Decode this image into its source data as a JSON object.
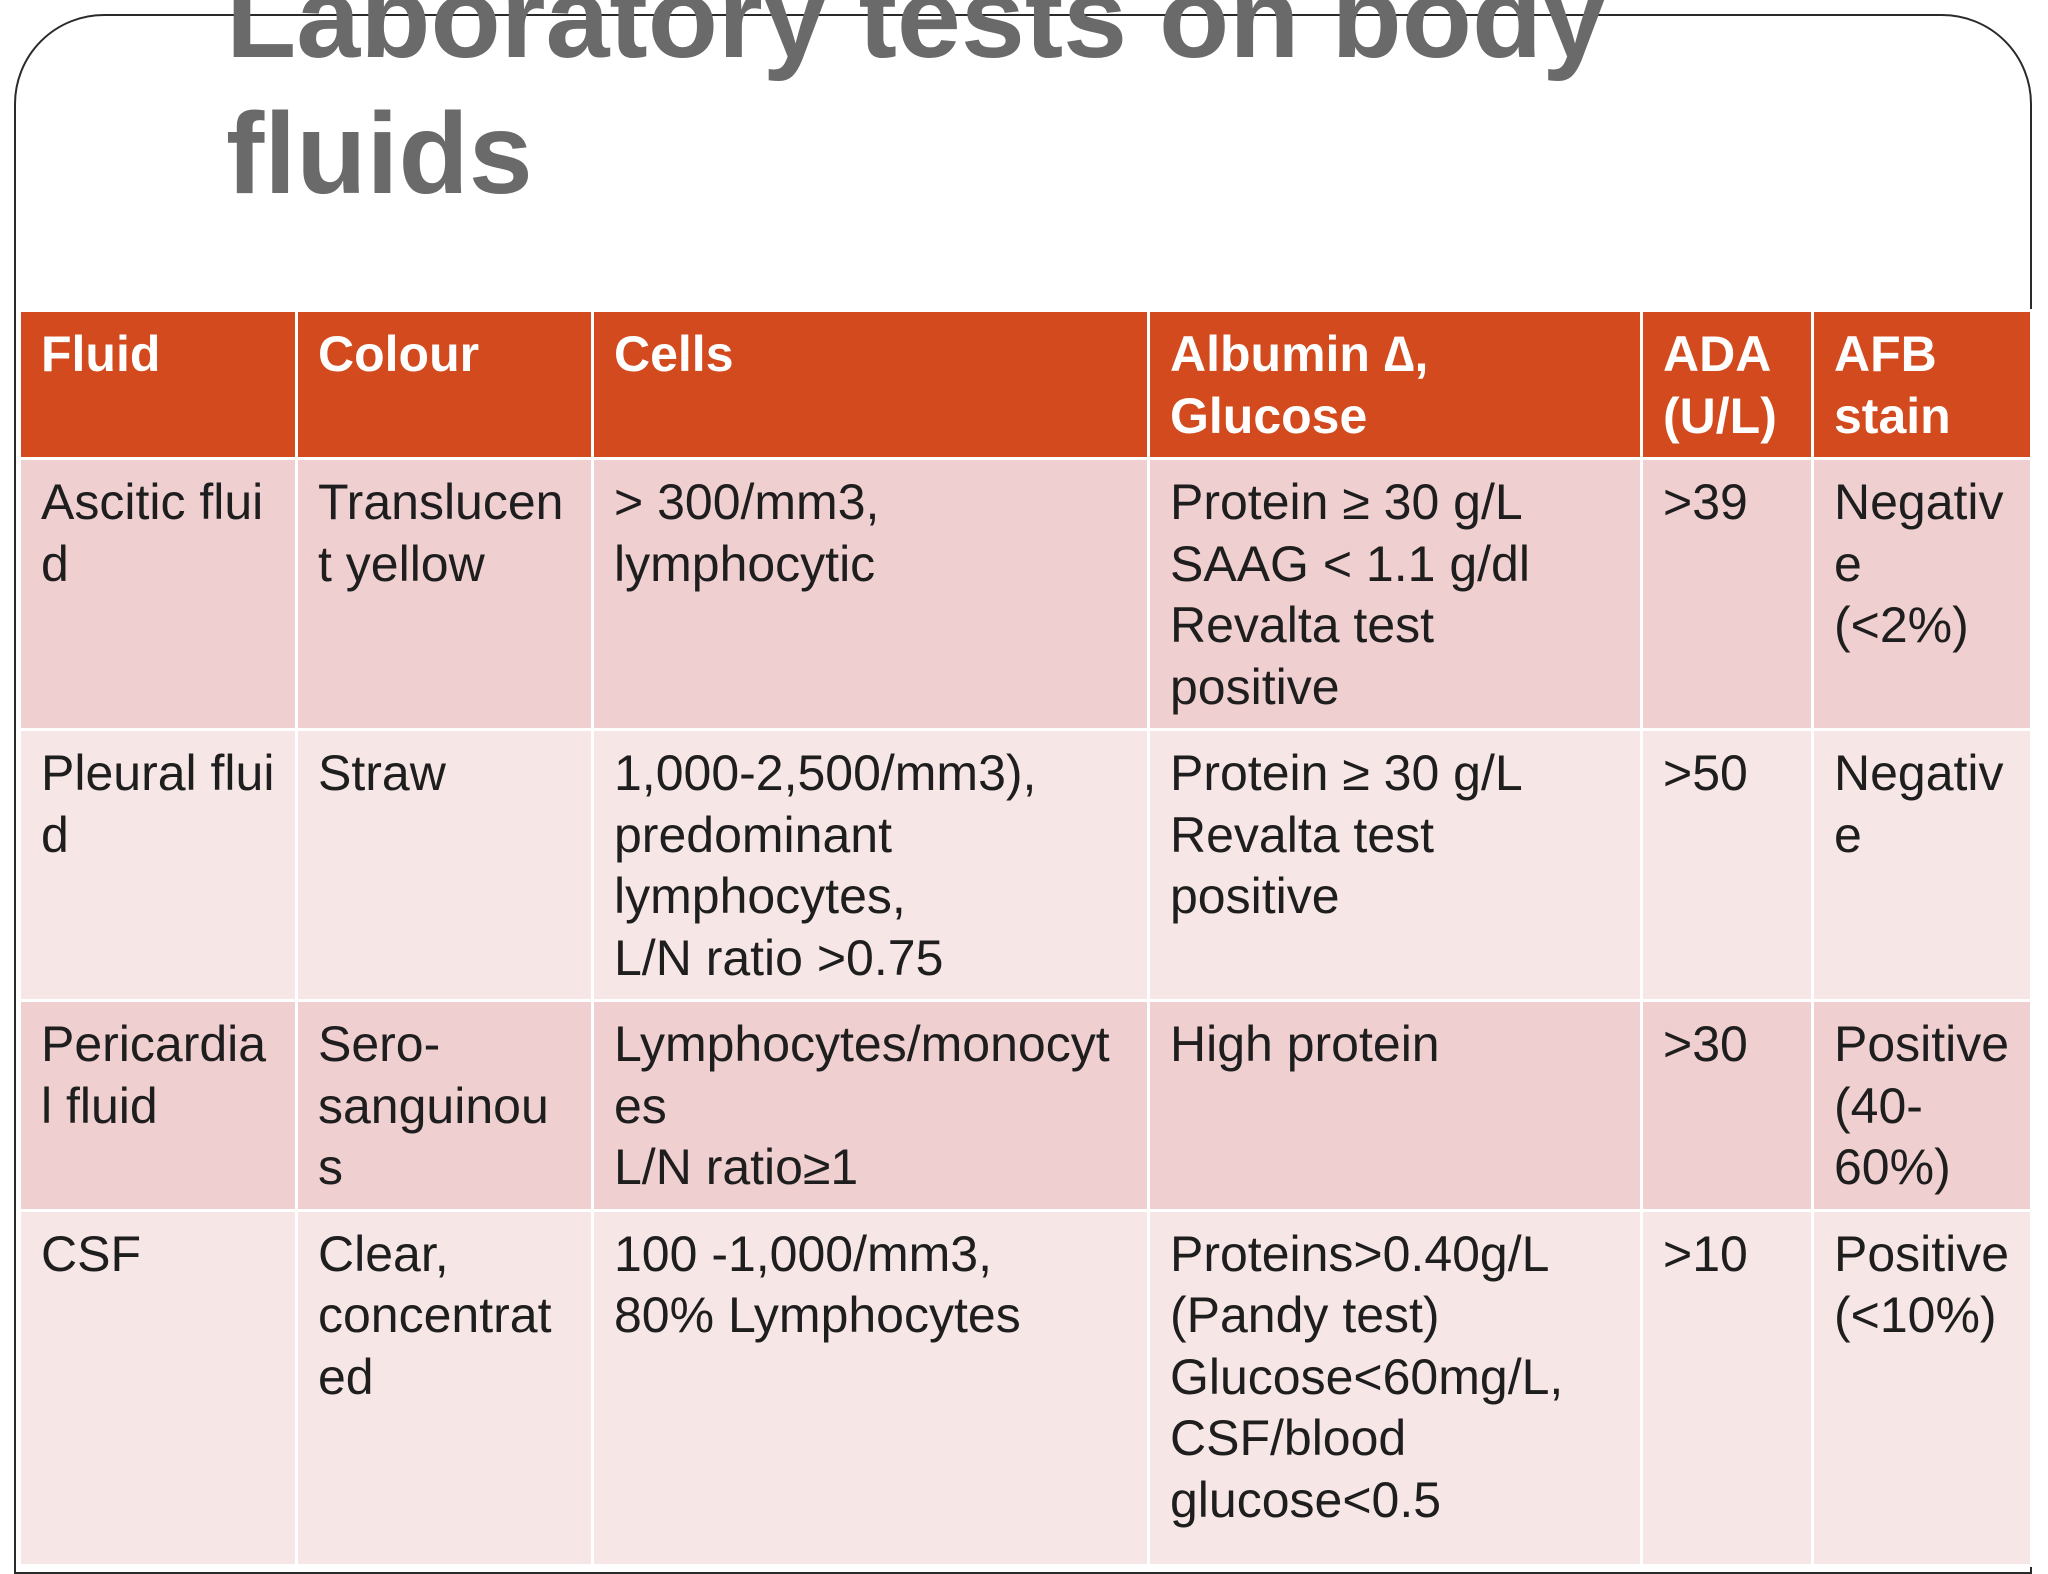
{
  "slide": {
    "title": "Laboratory tests on body\nfluids"
  },
  "table": {
    "headers": [
      "Fluid",
      "Colour",
      "Cells",
      "Albumin ∆,\nGlucose",
      "ADA\n(U/L)",
      "AFB\nstain"
    ],
    "rows": [
      [
        "Ascitic fluid",
        "Translucent yellow",
        "> 300/mm3,\nlymphocytic",
        "Protein ≥ 30 g/L\nSAAG < 1.1 g/dl\nRevalta test\npositive",
        ">39",
        "Negative\n(<2%)"
      ],
      [
        "Pleural fluid",
        "Straw",
        "1,000-2,500/mm3),\npredominant\nlymphocytes,\nL/N ratio >0.75",
        "Protein ≥ 30 g/L\nRevalta test\npositive",
        ">50",
        "Negative"
      ],
      [
        "Pericardial fluid",
        "Sero-\nsanguinous",
        "Lymphocytes/monocytes\nL/N ratio≥1",
        "High protein",
        ">30",
        "Positive\n(40-\n60%)"
      ],
      [
        "CSF",
        "Clear,\nconcentrated",
        "100 -1,000/mm3,\n80% Lymphocytes",
        "Proteins>0.40g/L\n(Pandy test)\nGlucose<60mg/L,\nCSF/blood\nglucose<0.5",
        ">10",
        "Positive\n(<10%)"
      ]
    ]
  },
  "colors": {
    "header_bg": "#d24a1d",
    "row_odd_bg": "#efcfcf",
    "row_even_bg": "#f7e6e6",
    "title_text": "#6a6a6a"
  }
}
